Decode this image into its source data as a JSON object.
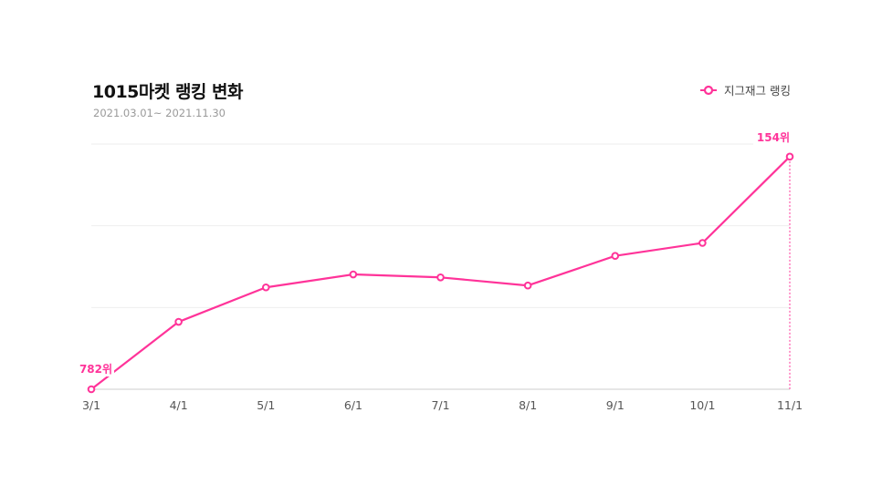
{
  "header": {
    "title": "1015마켓 랭킹 변화",
    "subtitle": "2021.03.01~ 2021.11.30"
  },
  "legend": {
    "label": "지그재그 랭킹",
    "marker_icon": "circle-line-icon"
  },
  "colors": {
    "line": "#ff3399",
    "grid": "#eeeeee",
    "axis": "#cccccc"
  },
  "chart_data": {
    "type": "line",
    "title": "1015마켓 랭킹 변화",
    "subtitle": "2021.03.01~ 2021.11.30",
    "xlabel": "",
    "ylabel": "",
    "y_inverted": true,
    "grid": true,
    "legend_position": "top-right",
    "categories": [
      "3/1",
      "4/1",
      "5/1",
      "6/1",
      "7/1",
      "8/1",
      "9/1",
      "10/1",
      "11/1"
    ],
    "series": [
      {
        "name": "지그재그 랭킹",
        "values": [
          782,
          600,
          507,
          472,
          480,
          502,
          422,
          387,
          154
        ]
      }
    ],
    "annotations": [
      {
        "index": 0,
        "text": "782위"
      },
      {
        "index": 8,
        "text": "154위"
      }
    ]
  }
}
